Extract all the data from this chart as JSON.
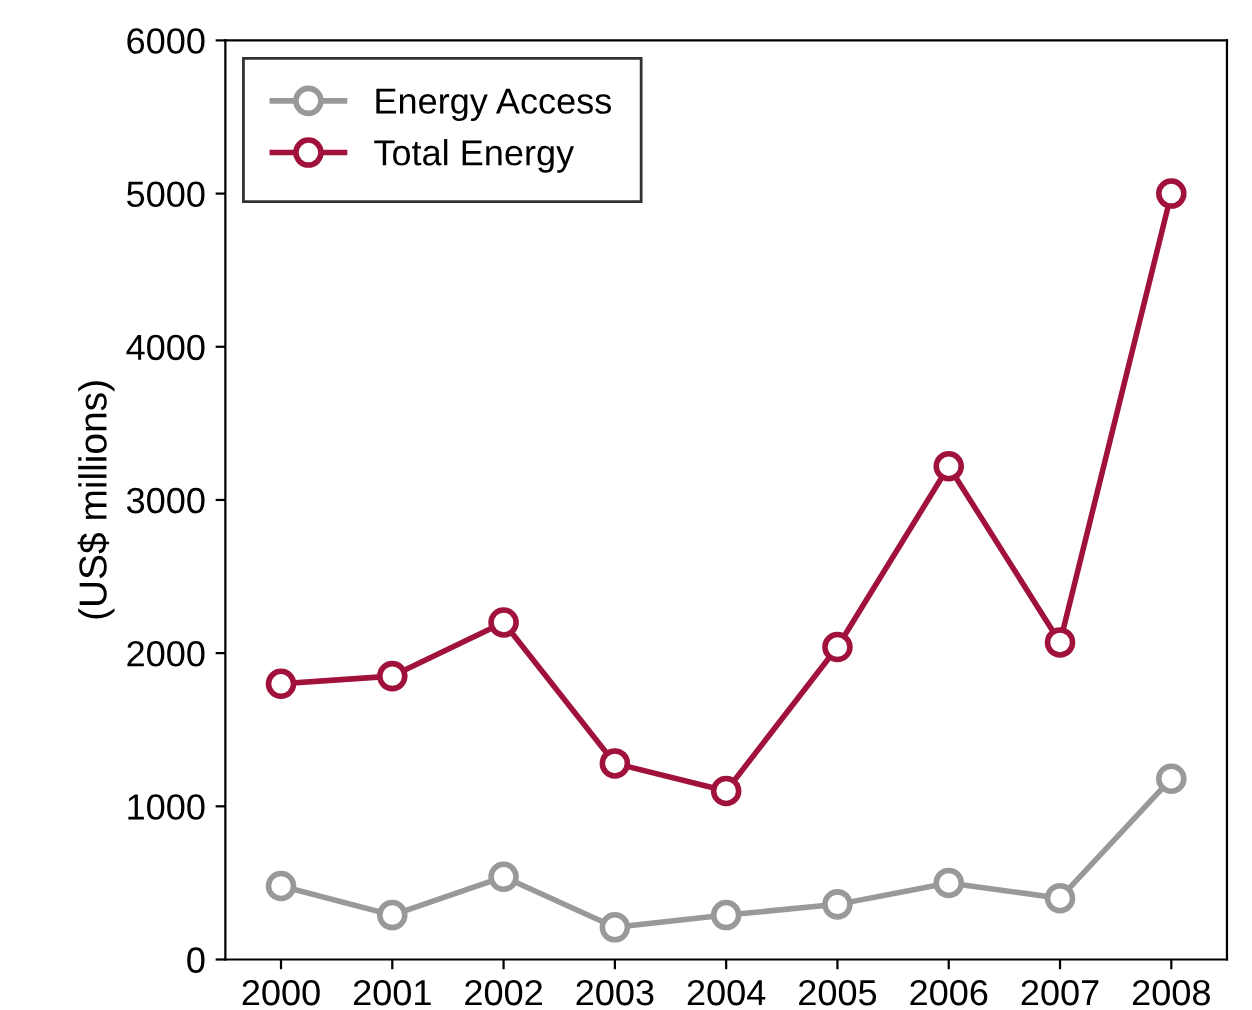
{
  "chart_data": {
    "type": "line",
    "ylabel": "(US$ millions)",
    "categories": [
      "2000",
      "2001",
      "2002",
      "2003",
      "2004",
      "2005",
      "2006",
      "2007",
      "2008"
    ],
    "series": [
      {
        "name": "Energy Access",
        "color": "#999999",
        "values": [
          480,
          290,
          540,
          210,
          290,
          360,
          500,
          400,
          1180
        ]
      },
      {
        "name": "Total Energy",
        "color": "#a0123c",
        "values": [
          1800,
          1850,
          2200,
          1280,
          1100,
          2040,
          3220,
          2070,
          5000
        ]
      }
    ],
    "ylim": [
      0,
      6000
    ],
    "yticks": [
      0,
      1000,
      2000,
      3000,
      4000,
      5000,
      6000
    ],
    "grid": false,
    "legend": "top left",
    "marker": "circle",
    "line_style": "solid"
  }
}
